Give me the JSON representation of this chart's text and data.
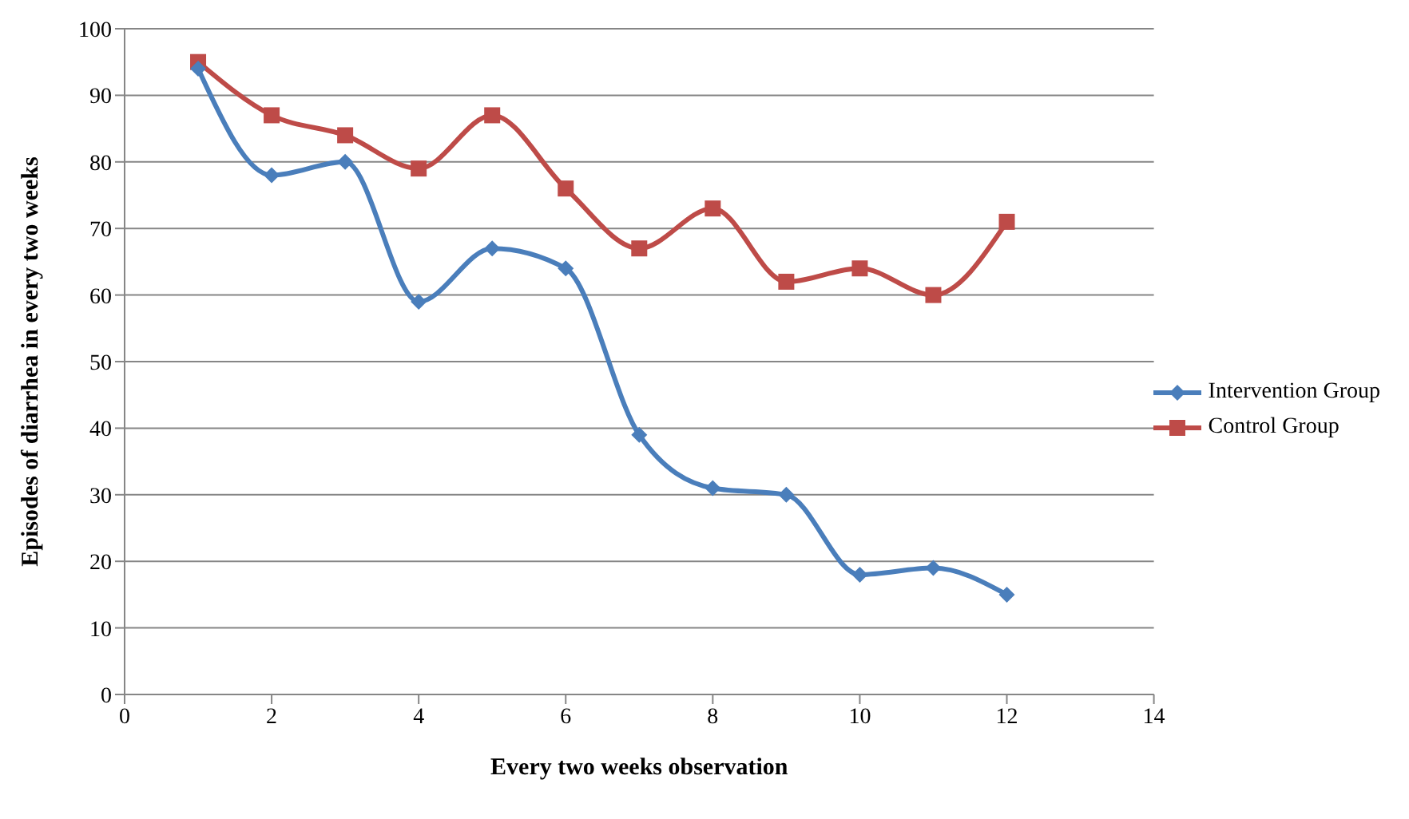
{
  "chart_data": {
    "type": "line",
    "xlabel": "Every two  weeks observation",
    "ylabel": "Episodes of diarrhea in every two weeks",
    "x": [
      1,
      2,
      3,
      4,
      5,
      6,
      7,
      8,
      9,
      10,
      11,
      12
    ],
    "series": [
      {
        "name": "Intervention Group",
        "color": "#4a7ebb",
        "marker": "diamond",
        "values": [
          94,
          78,
          80,
          59,
          67,
          64,
          39,
          31,
          30,
          18,
          19,
          15
        ]
      },
      {
        "name": "Control Group",
        "color": "#be4b48",
        "marker": "square",
        "values": [
          95,
          87,
          84,
          79,
          87,
          76,
          67,
          73,
          62,
          64,
          60,
          71
        ]
      }
    ],
    "xlim": [
      0,
      14
    ],
    "xticks": [
      0,
      2,
      4,
      6,
      8,
      10,
      12,
      14
    ],
    "ylim": [
      0,
      100
    ],
    "yticks": [
      0,
      10,
      20,
      30,
      40,
      50,
      60,
      70,
      80,
      90,
      100
    ],
    "grid": "y",
    "legend": "right",
    "line_style": "solid"
  }
}
